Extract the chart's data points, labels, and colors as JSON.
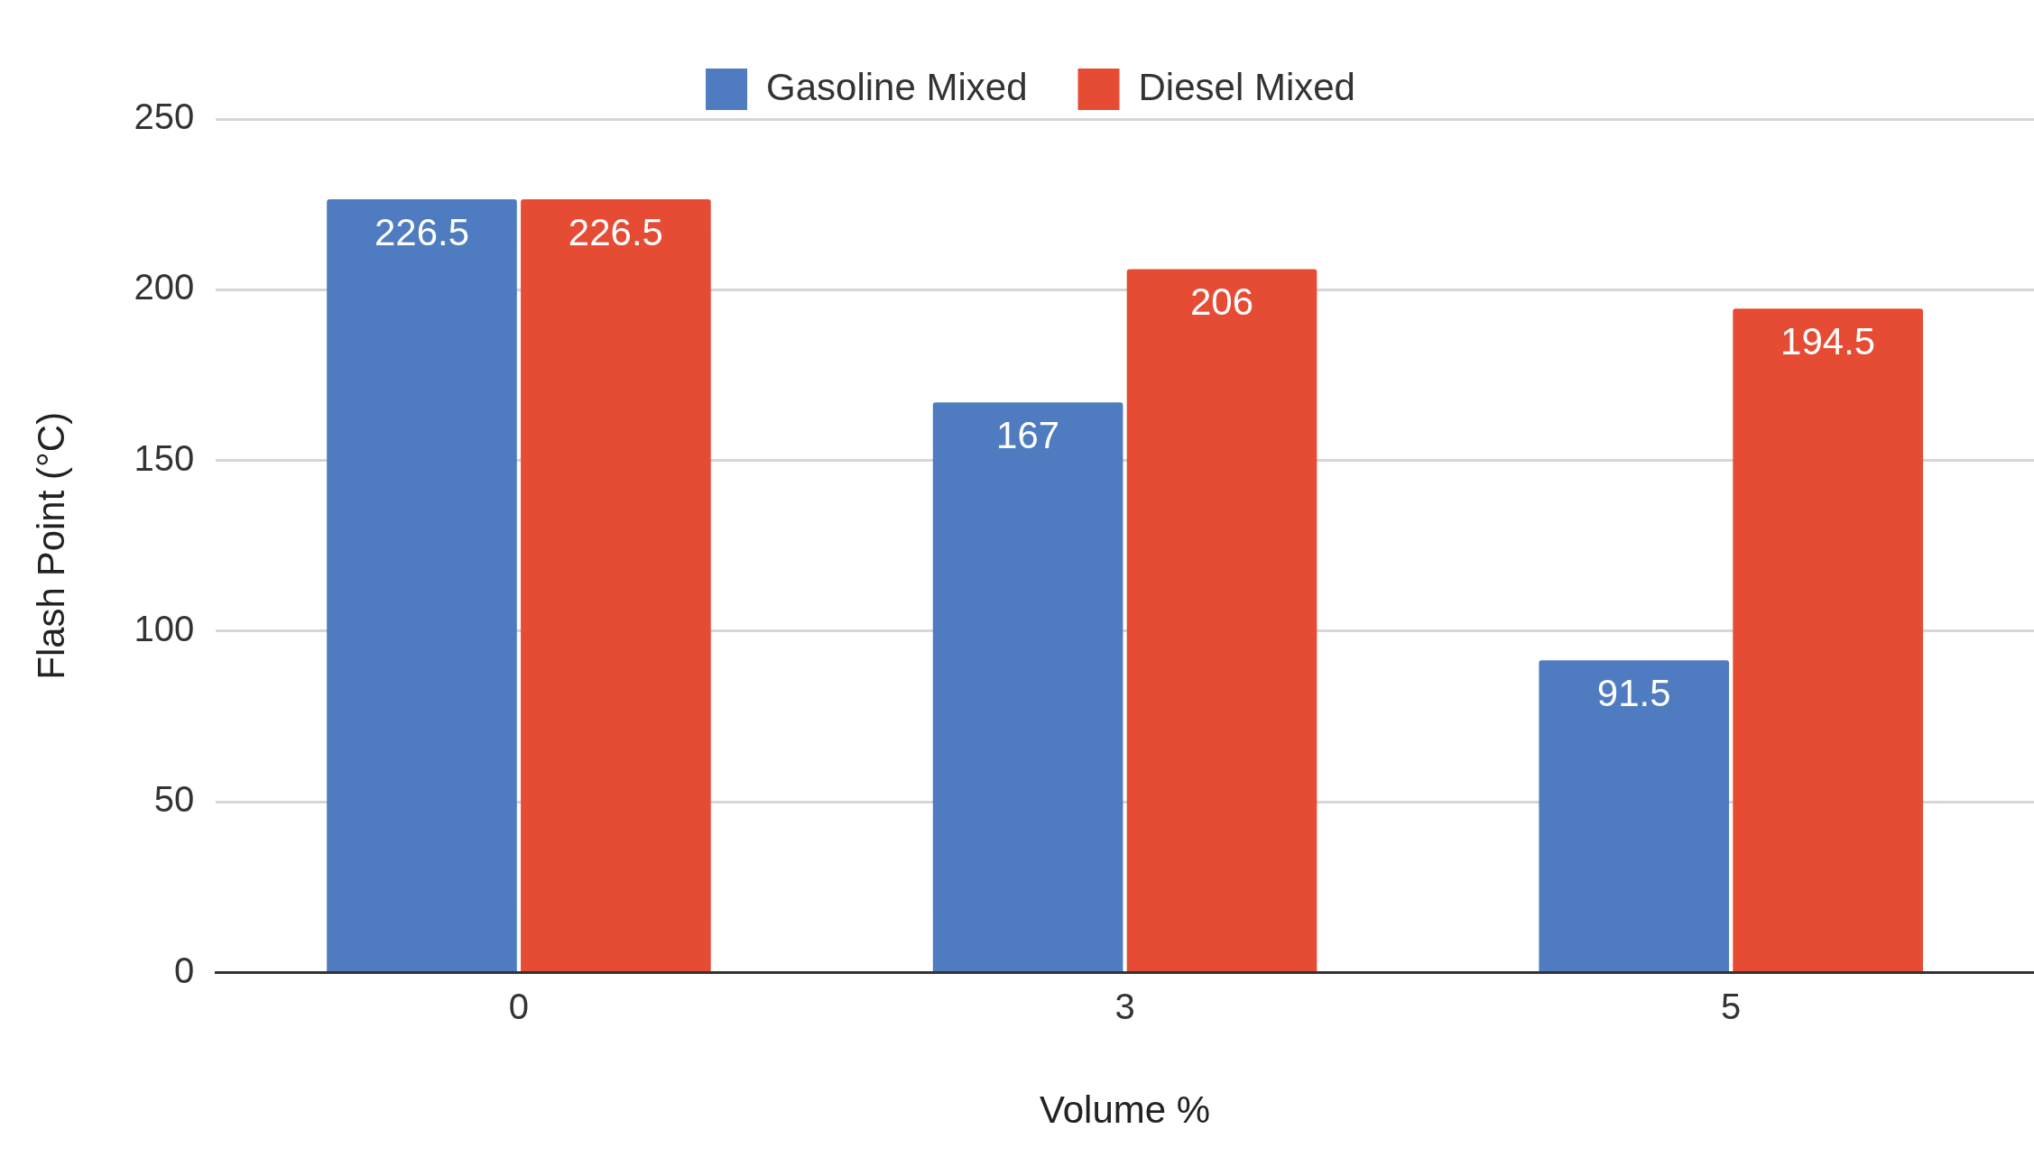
{
  "chart_data": {
    "type": "bar",
    "xlabel": "Volume %",
    "ylabel": "Flash Point (°C)",
    "categories": [
      "0",
      "3",
      "5"
    ],
    "series": [
      {
        "name": "Gasoline Mixed",
        "color": "#4f7bc1",
        "values": [
          226.5,
          167,
          91.5
        ]
      },
      {
        "name": "Diesel Mixed",
        "color": "#e64b33",
        "values": [
          226.5,
          206,
          194.5
        ]
      }
    ],
    "ylim": [
      0,
      250
    ],
    "yticks": [
      0,
      50,
      100,
      150,
      200,
      250
    ],
    "grid": "y",
    "legend": "top",
    "data_labels": true
  }
}
